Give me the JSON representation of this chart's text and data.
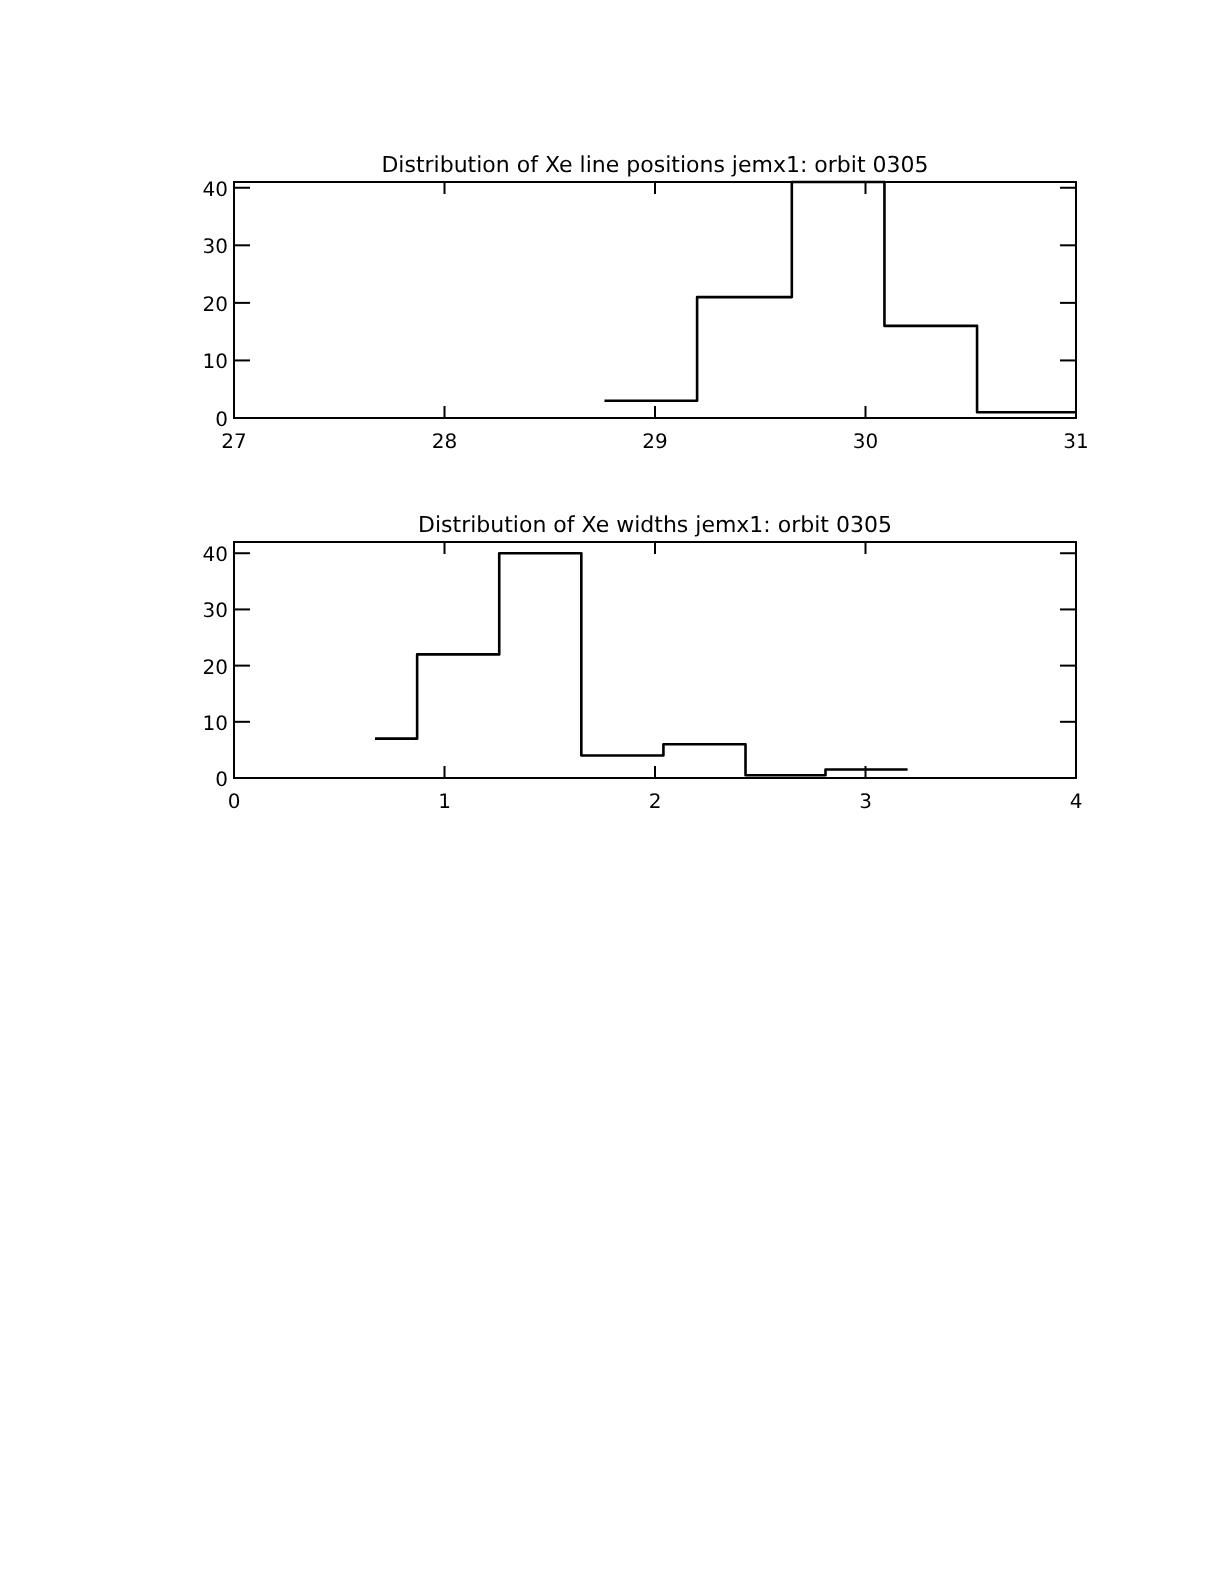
{
  "chart_data": [
    {
      "type": "histogram",
      "title": "Distribution of Xe line positions jemx1: orbit 0305",
      "bins": [
        28.76,
        29.2,
        29.65,
        30.09,
        30.53,
        31
      ],
      "values": [
        3,
        21,
        41,
        16,
        1
      ],
      "color": "#000000",
      "xlim": [
        27,
        31
      ],
      "xticks": [
        27,
        28,
        29,
        30,
        31
      ],
      "ylim": [
        0,
        41
      ],
      "yticks": [
        0,
        10,
        20,
        30,
        40
      ]
    },
    {
      "type": "histogram",
      "title": "Distribution of Xe widths jemx1: orbit 0305",
      "bins": [
        0.67,
        0.87,
        1.26,
        1.65,
        2.04,
        2.43,
        2.81,
        3.2
      ],
      "values": [
        7,
        22,
        40,
        4,
        6,
        0.5,
        1.5
      ],
      "color": "#000000",
      "xlim": [
        0,
        4
      ],
      "xticks": [
        0,
        1,
        2,
        3,
        4
      ],
      "ylim": [
        0,
        42
      ],
      "yticks": [
        0,
        10,
        20,
        30,
        40
      ]
    }
  ]
}
